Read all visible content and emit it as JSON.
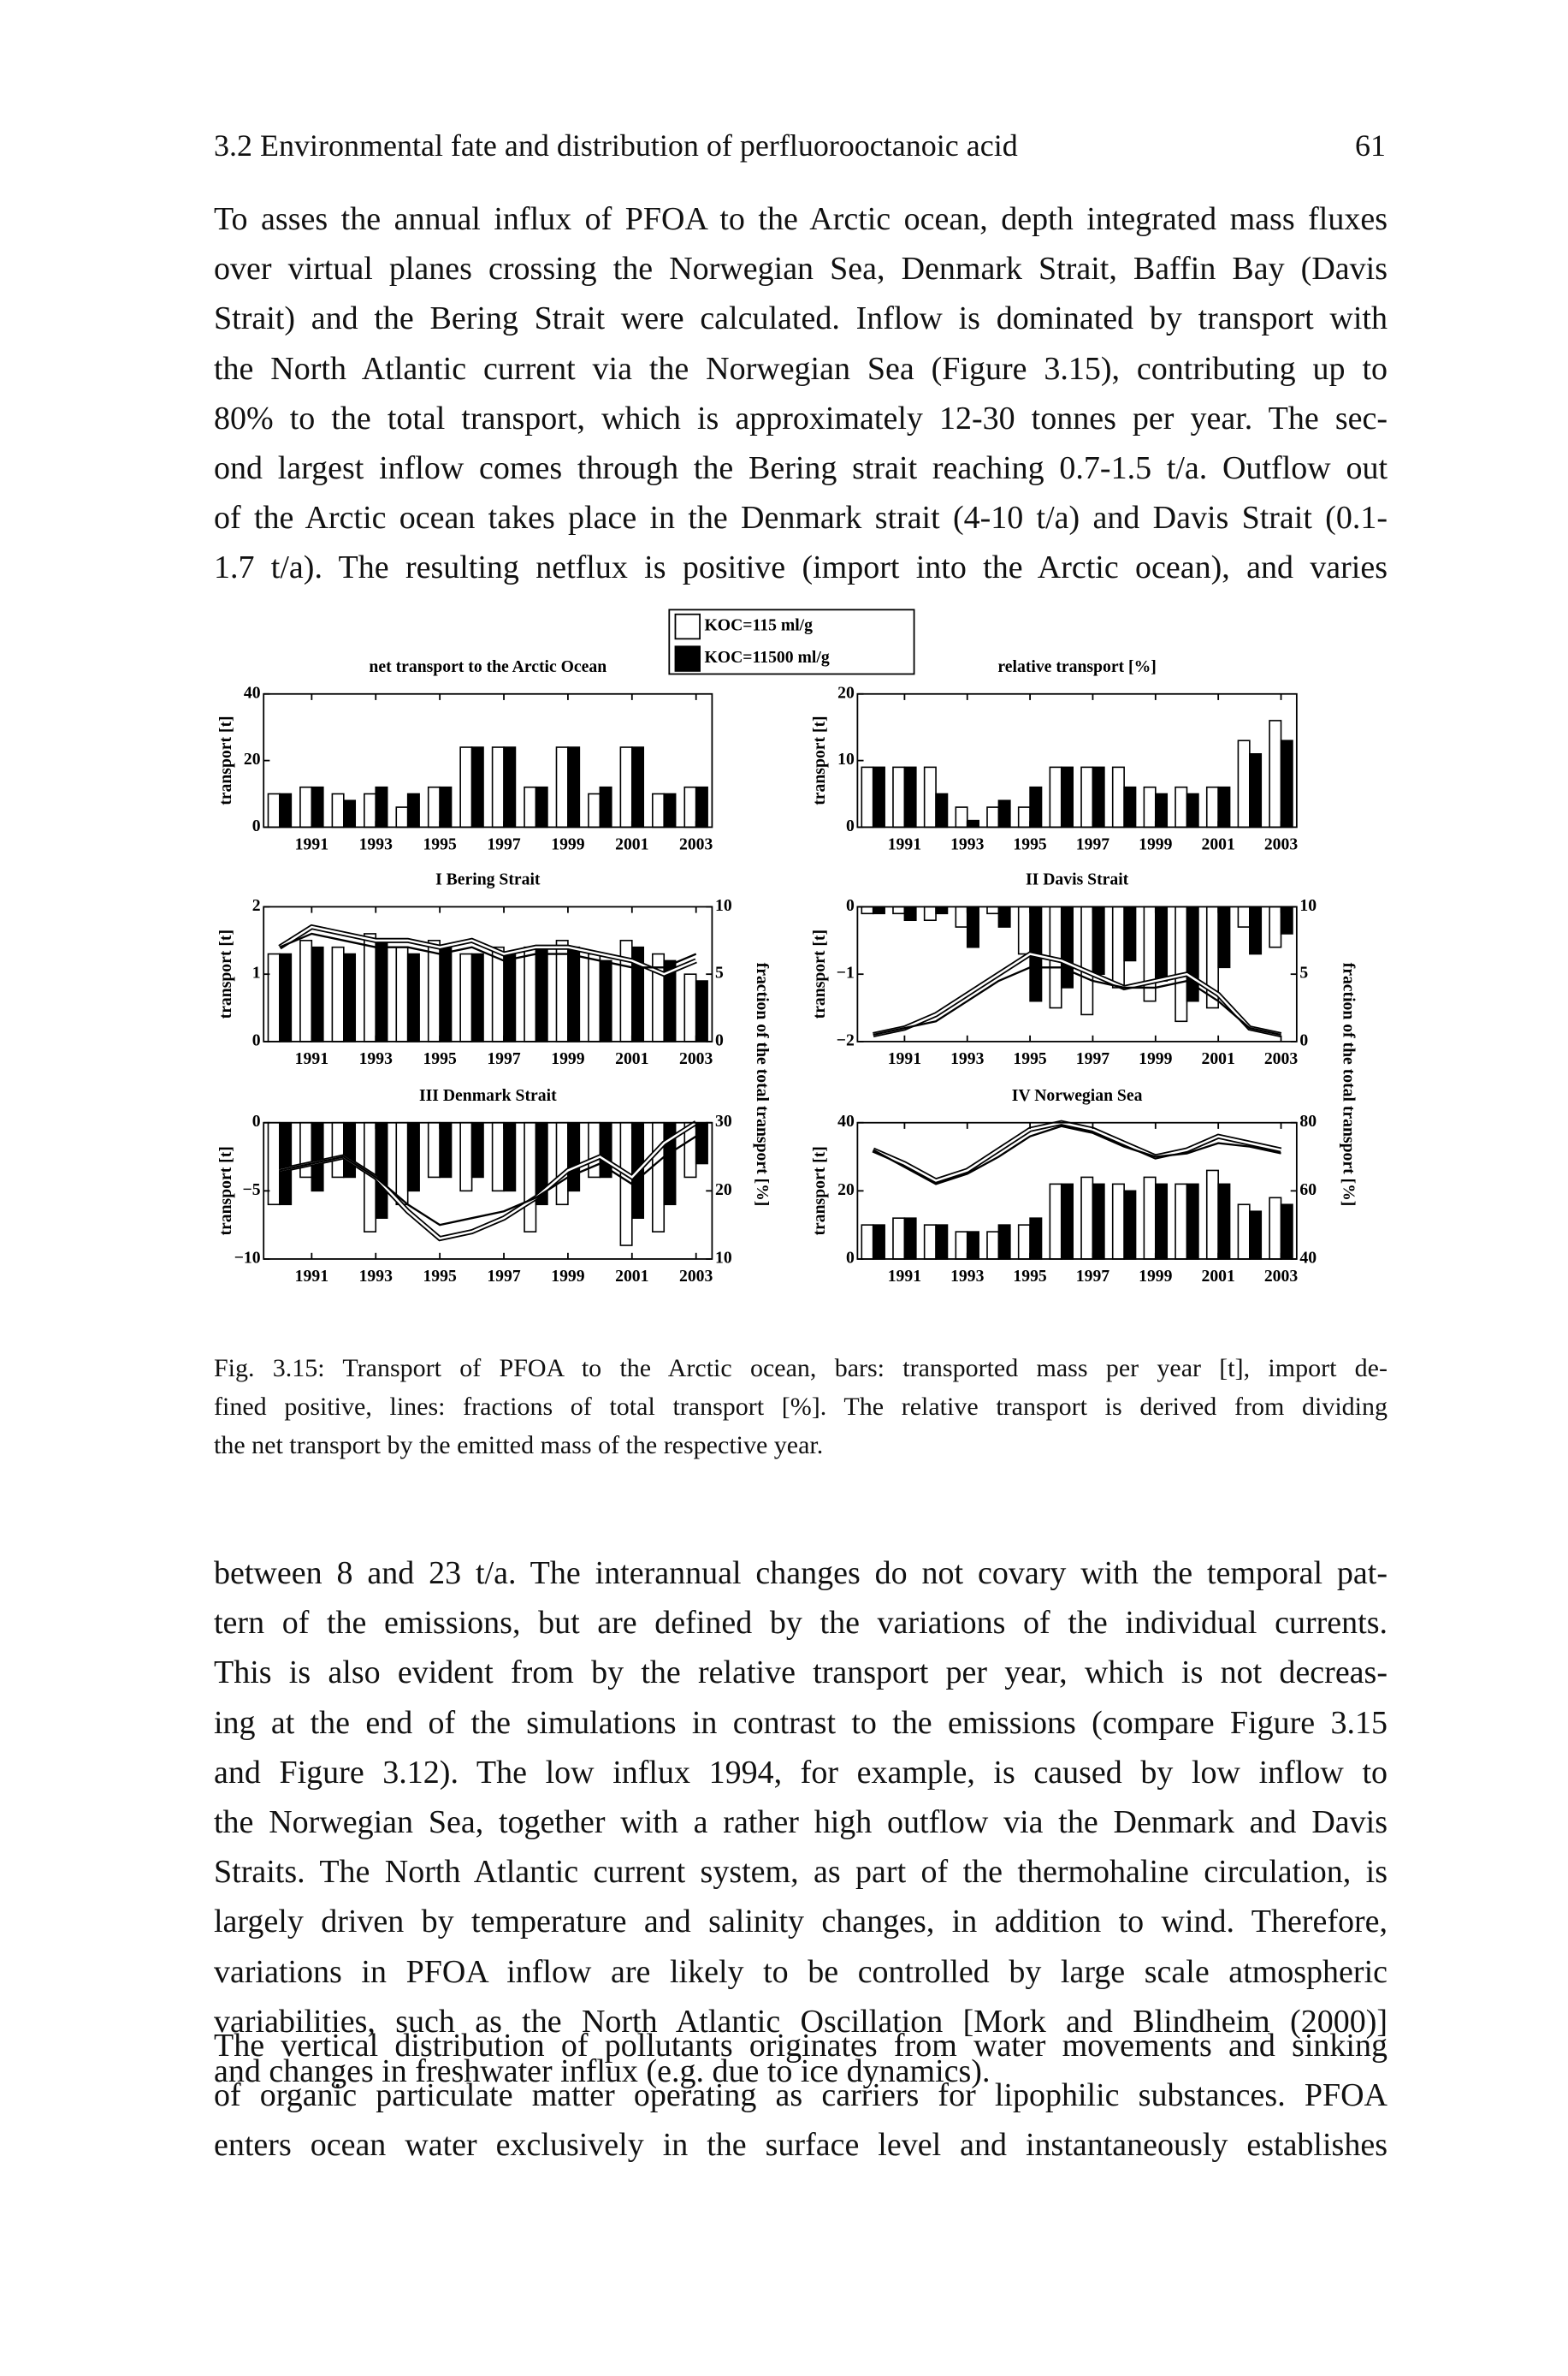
{
  "header": {
    "section": "3.2 Environmental fate and distribution of perfluorooctanoic acid",
    "page": "61"
  },
  "paragraphs": [
    [
      "To asses the annual influx of PFOA to the Arctic ocean, depth integrated mass fluxes",
      "over virtual planes crossing the Norwegian Sea, Denmark Strait, Baffin Bay (Davis",
      "Strait) and the Bering Strait were calculated. Inflow is dominated by transport with",
      "the North Atlantic current via the Norwegian Sea (Figure 3.15), contributing up to",
      "80% to the total transport, which is approximately 12-30 tonnes per year. The sec-",
      "ond largest inflow comes through the Bering strait reaching 0.7-1.5 t/a. Outflow out",
      "of the Arctic ocean takes place in the Denmark strait (4-10 t/a) and Davis Strait (0.1-",
      "1.7 t/a). The resulting netflux is positive (import into the Arctic ocean), and varies"
    ],
    [
      "between 8 and 23 t/a. The interannual changes do not covary with the temporal pat-",
      "tern of the emissions, but are defined by the variations of the individual currents.",
      "This is also evident from by the relative transport per year, which is not decreas-",
      "ing at the end of the simulations in contrast to the emissions (compare Figure 3.15",
      "and Figure 3.12). The low influx 1994, for example, is caused by low inflow to",
      "the Norwegian Sea, together with a rather high outflow via the Denmark and Davis",
      "Straits. The North Atlantic current system, as part of the thermohaline circulation, is",
      "largely driven by temperature and salinity changes, in addition to wind. Therefore,",
      "variations in PFOA inflow are likely to be controlled by large scale atmospheric",
      "variabilities, such as the North Atlantic Oscillation [Mork and Blindheim (2000)]",
      "and changes in freshwater influx (e.g. due to ice dynamics)."
    ],
    [
      "The vertical distribution of pollutants originates from water movements and sinking",
      "of organic particulate matter operating as carriers for lipophilic substances. PFOA",
      "enters ocean water exclusively in the surface level and instantaneously establishes"
    ]
  ],
  "figure": {
    "legend": [
      {
        "label": "KOC=115 ml/g",
        "color": "#ffffff"
      },
      {
        "label": "KOC=11500 ml/g",
        "color": "#000000"
      }
    ],
    "caption": [
      "Fig. 3.15: Transport of PFOA to the Arctic ocean, bars: transported mass per year [t], import de-",
      "fined positive, lines: fractions of total transport [%]. The relative transport is derived from dividing",
      "the net transport by the emitted mass of the respective year."
    ]
  },
  "chart_data": [
    {
      "type": "bar",
      "title": "net transport to the Arctic Ocean",
      "ylabel": "transport [t]",
      "x": [
        1990,
        1991,
        1992,
        1993,
        1994,
        1995,
        1996,
        1997,
        1998,
        1999,
        2000,
        2001,
        2002,
        2003
      ],
      "xlim": [
        1989.5,
        2003.5
      ],
      "xticks": [
        1991,
        1993,
        1995,
        1997,
        1999,
        2001,
        2003
      ],
      "ylim": [
        0,
        40
      ],
      "yticks": [
        0,
        20,
        40
      ],
      "series": [
        {
          "color": "#ffffff",
          "values": [
            10,
            12,
            10,
            10,
            6,
            12,
            24,
            24,
            12,
            24,
            10,
            24,
            10,
            12
          ]
        },
        {
          "color": "#000000",
          "values": [
            10,
            12,
            8,
            12,
            10,
            12,
            24,
            24,
            12,
            24,
            12,
            24,
            10,
            12
          ]
        }
      ]
    },
    {
      "type": "bar",
      "title": "relative transport [%]",
      "ylabel": "transport [t]",
      "x": [
        1990,
        1991,
        1992,
        1993,
        1994,
        1995,
        1996,
        1997,
        1998,
        1999,
        2000,
        2001,
        2002,
        2003
      ],
      "xlim": [
        1989.5,
        2003.5
      ],
      "xticks": [
        1991,
        1993,
        1995,
        1997,
        1999,
        2001,
        2003
      ],
      "ylim": [
        0,
        20
      ],
      "yticks": [
        0,
        10,
        20
      ],
      "series": [
        {
          "color": "#ffffff",
          "values": [
            9,
            9,
            9,
            3,
            3,
            3,
            9,
            9,
            9,
            6,
            6,
            6,
            13,
            16
          ]
        },
        {
          "color": "#000000",
          "values": [
            9,
            9,
            5,
            1,
            4,
            6,
            9,
            9,
            6,
            5,
            5,
            6,
            11,
            13
          ]
        }
      ]
    },
    {
      "type": "bar",
      "title": "I Bering Strait",
      "ylabel": "transport [t]",
      "y2label": "fraction of the total transport [%]",
      "x": [
        1990,
        1991,
        1992,
        1993,
        1994,
        1995,
        1996,
        1997,
        1998,
        1999,
        2000,
        2001,
        2002,
        2003
      ],
      "xlim": [
        1989.5,
        2003.5
      ],
      "xticks": [
        1991,
        1993,
        1995,
        1997,
        1999,
        2001,
        2003
      ],
      "ylim": [
        0,
        2
      ],
      "yticks": [
        0,
        1,
        2
      ],
      "y2lim": [
        0,
        10
      ],
      "y2ticks": [
        0,
        5,
        10
      ],
      "series": [
        {
          "color": "#ffffff",
          "values": [
            1.3,
            1.5,
            1.4,
            1.6,
            1.4,
            1.5,
            1.3,
            1.4,
            1.4,
            1.5,
            1.3,
            1.5,
            1.3,
            1.0
          ]
        },
        {
          "color": "#000000",
          "values": [
            1.3,
            1.4,
            1.3,
            1.5,
            1.3,
            1.4,
            1.3,
            1.3,
            1.4,
            1.4,
            1.2,
            1.4,
            1.2,
            0.9
          ]
        },
        {
          "type": "line",
          "axis": "y2",
          "color": "#ffffff",
          "values": [
            7,
            8.5,
            8,
            7.5,
            7.5,
            7,
            7.5,
            6.5,
            7,
            7,
            6.5,
            6,
            5,
            6
          ]
        },
        {
          "type": "line",
          "axis": "y2",
          "color": "#000000",
          "values": [
            7,
            8,
            7.5,
            7,
            7,
            6.5,
            7,
            6,
            6.5,
            6.5,
            6,
            5.5,
            5.5,
            6.5
          ]
        }
      ]
    },
    {
      "type": "bar",
      "title": "II Davis Strait",
      "ylabel": "transport [t]",
      "y2label": "fraction of the total transport [%]",
      "x": [
        1990,
        1991,
        1992,
        1993,
        1994,
        1995,
        1996,
        1997,
        1998,
        1999,
        2000,
        2001,
        2002,
        2003
      ],
      "xlim": [
        1989.5,
        2003.5
      ],
      "xticks": [
        1991,
        1993,
        1995,
        1997,
        1999,
        2001,
        2003
      ],
      "ylim": [
        -2,
        0
      ],
      "yticks": [
        {
          "value": -2,
          "label": "−2"
        },
        {
          "value": -1,
          "label": "−1"
        },
        0
      ],
      "y2lim": [
        0,
        10
      ],
      "y2ticks": [
        0,
        5,
        10
      ],
      "series": [
        {
          "color": "#ffffff",
          "values": [
            -0.1,
            -0.1,
            -0.2,
            -0.3,
            -0.1,
            -0.7,
            -1.5,
            -1.6,
            -1.2,
            -1.4,
            -1.7,
            -1.5,
            -0.3,
            -0.6
          ]
        },
        {
          "color": "#000000",
          "values": [
            -0.1,
            -0.2,
            -0.1,
            -0.6,
            -0.3,
            -1.4,
            -1.2,
            -1.0,
            -0.8,
            -1.1,
            -1.4,
            -0.9,
            -0.7,
            -0.4
          ]
        },
        {
          "type": "line",
          "axis": "y2",
          "color": "#ffffff",
          "values": [
            0.5,
            1,
            2,
            3.5,
            5,
            6.5,
            6,
            5,
            4,
            4.5,
            5,
            3.5,
            1,
            0.5
          ]
        },
        {
          "type": "line",
          "axis": "y2",
          "color": "#000000",
          "values": [
            0.5,
            1,
            1.5,
            3,
            4.5,
            5.5,
            5.5,
            4.5,
            4,
            4,
            4.5,
            3,
            1,
            0.5
          ]
        }
      ]
    },
    {
      "type": "bar",
      "title": "III Denmark Strait",
      "ylabel": "transport [t]",
      "x": [
        1990,
        1991,
        1992,
        1993,
        1994,
        1995,
        1996,
        1997,
        1998,
        1999,
        2000,
        2001,
        2002,
        2003
      ],
      "xlim": [
        1989.5,
        2003.5
      ],
      "xticks": [
        1991,
        1993,
        1995,
        1997,
        1999,
        2001,
        2003
      ],
      "ylim": [
        -10,
        0
      ],
      "yticks": [
        {
          "value": -10,
          "label": "−10"
        },
        {
          "value": -5,
          "label": "−5"
        },
        0
      ],
      "y2lim": [
        10,
        30
      ],
      "y2ticks": [
        10,
        20,
        30
      ],
      "series": [
        {
          "color": "#ffffff",
          "values": [
            -6,
            -4,
            -4,
            -8,
            -6,
            -4,
            -5,
            -5,
            -8,
            -6,
            -4,
            -9,
            -8,
            -4
          ]
        },
        {
          "color": "#000000",
          "values": [
            -6,
            -5,
            -4,
            -7,
            -5,
            -4,
            -4,
            -5,
            -6,
            -5,
            -4,
            -7,
            -6,
            -3
          ]
        },
        {
          "type": "line",
          "axis": "y2",
          "color": "#ffffff",
          "values": [
            23,
            24,
            25,
            22,
            17,
            13,
            14,
            16,
            19,
            23,
            25,
            22,
            27,
            30
          ]
        },
        {
          "type": "line",
          "axis": "y2",
          "color": "#000000",
          "values": [
            23,
            24,
            25,
            22,
            18,
            15,
            16,
            17,
            19,
            22,
            24,
            21,
            25,
            28
          ]
        }
      ]
    },
    {
      "type": "bar",
      "title": "IV Norwegian Sea",
      "ylabel": "transport [t]",
      "x": [
        1990,
        1991,
        1992,
        1993,
        1994,
        1995,
        1996,
        1997,
        1998,
        1999,
        2000,
        2001,
        2002,
        2003
      ],
      "xlim": [
        1989.5,
        2003.5
      ],
      "xticks": [
        1991,
        1993,
        1995,
        1997,
        1999,
        2001,
        2003
      ],
      "ylim": [
        0,
        40
      ],
      "yticks": [
        0,
        20,
        40
      ],
      "y2lim": [
        40,
        80
      ],
      "y2ticks": [
        40,
        60,
        80
      ],
      "series": [
        {
          "color": "#ffffff",
          "values": [
            10,
            12,
            10,
            8,
            8,
            10,
            22,
            24,
            22,
            24,
            22,
            26,
            16,
            18
          ]
        },
        {
          "color": "#000000",
          "values": [
            10,
            12,
            10,
            8,
            10,
            12,
            22,
            22,
            20,
            22,
            22,
            22,
            14,
            16
          ]
        },
        {
          "type": "line",
          "axis": "y2",
          "color": "#ffffff",
          "values": [
            72,
            68,
            63,
            66,
            72,
            78,
            80,
            78,
            74,
            70,
            72,
            76,
            74,
            72
          ]
        },
        {
          "type": "line",
          "axis": "y2",
          "color": "#000000",
          "values": [
            72,
            67,
            62,
            65,
            70,
            76,
            79,
            77,
            73,
            70,
            71,
            74,
            73,
            71
          ]
        }
      ]
    }
  ]
}
